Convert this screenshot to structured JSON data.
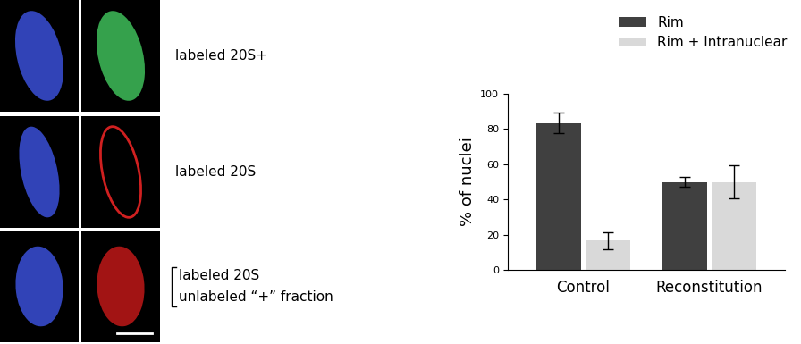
{
  "chart_data": {
    "type": "bar",
    "y_label": "% of nuclei",
    "categories": [
      "Control",
      "Reconstitution"
    ],
    "series": [
      {
        "name": "Rim",
        "color": "#404040",
        "values": [
          83.5,
          50
        ],
        "errors": [
          6,
          3
        ]
      },
      {
        "name": "Rim + Intranuclear",
        "color": "#d9d9d9",
        "values": [
          16.5,
          50
        ],
        "errors": [
          5,
          9.5
        ]
      }
    ],
    "ylim": [
      0,
      100
    ],
    "yticks": [
      0,
      20,
      40,
      60,
      80,
      100
    ],
    "grid": false,
    "legend": "upper right"
  },
  "micrograph_labels": [
    [
      "labeled 20S+"
    ],
    [
      "labeled 20S"
    ],
    [
      "labeled 20S",
      "unlabeled “+” fraction"
    ]
  ]
}
